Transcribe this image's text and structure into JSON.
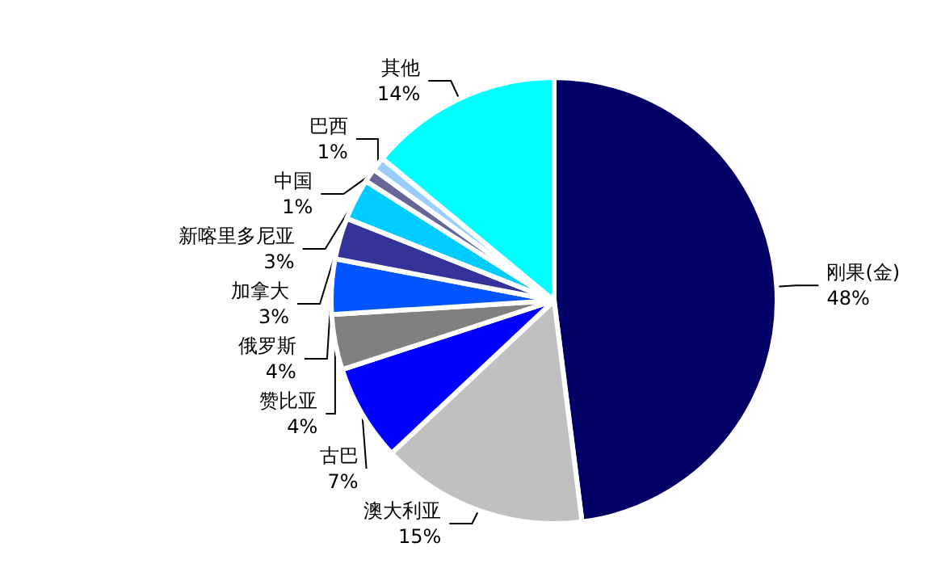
{
  "chart_data": {
    "type": "pie",
    "categories": [
      "刚果(金)",
      "澳大利亚",
      "古巴",
      "赞比亚",
      "俄罗斯",
      "加拿大",
      "新喀里多尼亚",
      "中国",
      "巴西",
      "其他"
    ],
    "values": [
      48,
      15,
      7,
      4,
      4,
      3,
      3,
      1,
      1,
      14
    ],
    "colors": [
      "#000066",
      "#c0c0c0",
      "#0000ff",
      "#808080",
      "#0055ff",
      "#333399",
      "#00ccff",
      "#666699",
      "#99ccff",
      "#00ffff"
    ],
    "value_labels": [
      "48%",
      "15%",
      "7%",
      "4%",
      "4%",
      "3%",
      "3%",
      "1%",
      "1%",
      "14%"
    ],
    "legend": false
  }
}
